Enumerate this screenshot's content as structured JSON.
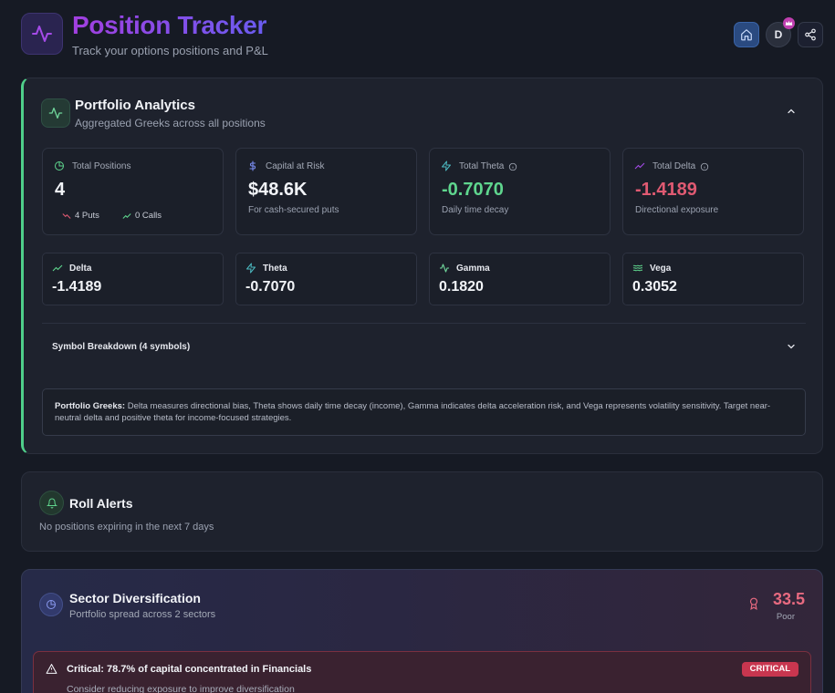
{
  "header": {
    "title": "Position Tracker",
    "subtitle": "Track your options positions and P&L",
    "avatar_initial": "D"
  },
  "analytics": {
    "title": "Portfolio Analytics",
    "subtitle": "Aggregated Greeks across all positions",
    "stats": {
      "total_positions": {
        "label": "Total Positions",
        "value": "4",
        "puts": "4 Puts",
        "calls": "0 Calls"
      },
      "capital_at_risk": {
        "label": "Capital at Risk",
        "value": "$48.6K",
        "note": "For cash-secured puts"
      },
      "total_theta": {
        "label": "Total Theta",
        "value": "-0.7070",
        "note": "Daily time decay"
      },
      "total_delta": {
        "label": "Total Delta",
        "value": "-1.4189",
        "note": "Directional exposure"
      }
    },
    "greeks": {
      "delta": {
        "label": "Delta",
        "value": "-1.4189"
      },
      "theta": {
        "label": "Theta",
        "value": "-0.7070"
      },
      "gamma": {
        "label": "Gamma",
        "value": "0.1820"
      },
      "vega": {
        "label": "Vega",
        "value": "0.3052"
      }
    },
    "breakdown_label": "Symbol Breakdown (4 symbols)",
    "info_bold": "Portfolio Greeks:",
    "info_text": " Delta measures directional bias, Theta shows daily time decay (income), Gamma indicates delta acceleration risk, and Vega represents volatility sensitivity. Target near-neutral delta and positive theta for income-focused strategies."
  },
  "roll_alerts": {
    "title": "Roll Alerts",
    "message": "No positions expiring in the next 7 days"
  },
  "sector": {
    "title": "Sector Diversification",
    "subtitle": "Portfolio spread across 2 sectors",
    "score": "33.5",
    "score_label": "Poor",
    "alert_title": "Critical: 78.7% of capital concentrated in Financials",
    "alert_sub": "Consider reducing exposure to improve diversification",
    "alert_badge": "CRITICAL"
  },
  "colors": {
    "accent_green": "#4fcf8a",
    "positive": "#5fd68e",
    "negative": "#e05a72",
    "title_gradient_start": "#a23fe0",
    "title_gradient_end": "#6a5cf0",
    "critical": "#c8364f"
  },
  "icons": [
    "activity-icon",
    "home-icon",
    "crown-icon",
    "share-icon",
    "pie-icon",
    "dollar-icon",
    "zap-icon",
    "trending-up-icon",
    "trending-down-icon",
    "info-icon",
    "waves-icon",
    "bell-icon",
    "award-icon",
    "alert-triangle-icon",
    "chevron-up-icon",
    "chevron-down-icon"
  ]
}
